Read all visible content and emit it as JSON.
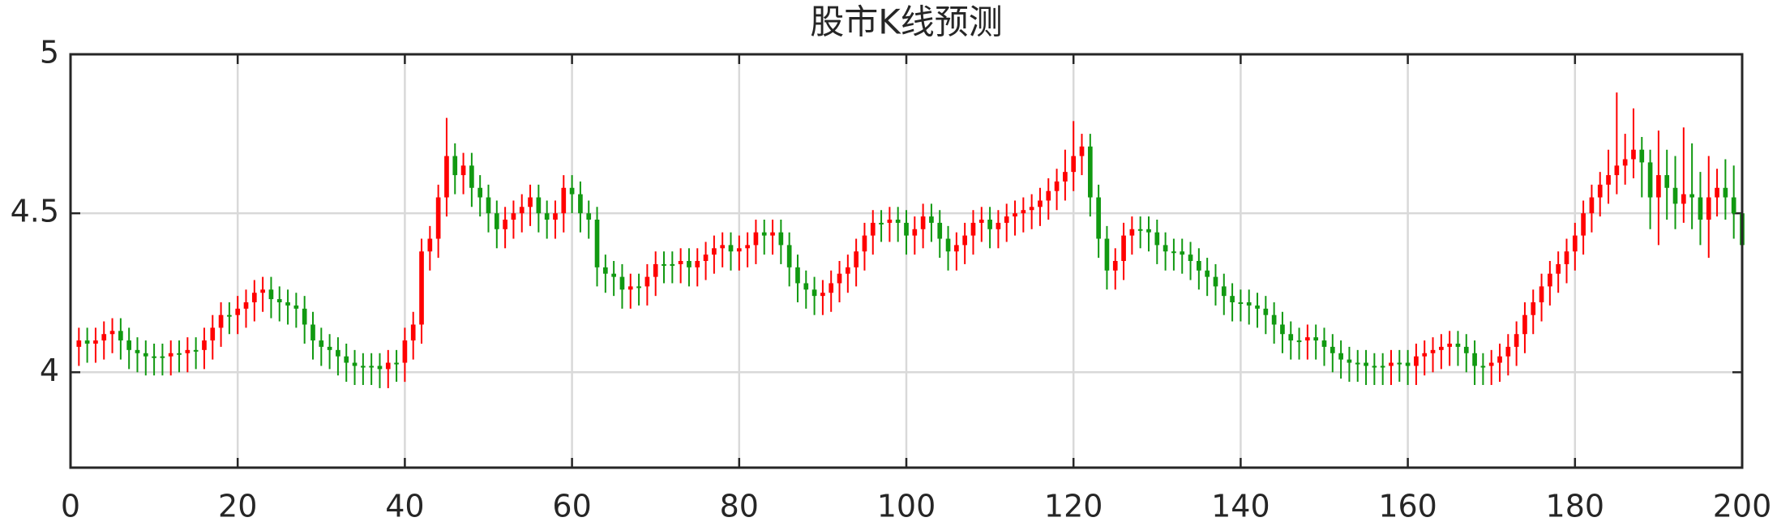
{
  "chart_data": {
    "type": "candlestick",
    "title": "股市K线预测",
    "up_color": "#ff0000",
    "down_color": "#119911",
    "grid": true,
    "xlim": [
      0,
      200
    ],
    "xticks": [
      0,
      20,
      40,
      60,
      80,
      100,
      120,
      140,
      160,
      180,
      200
    ],
    "ylim": [
      3.7,
      5
    ],
    "yticks": [
      4,
      4.5,
      5
    ],
    "x": [
      1,
      2,
      3,
      4,
      5,
      6,
      7,
      8,
      9,
      10,
      11,
      12,
      13,
      14,
      15,
      16,
      17,
      18,
      19,
      20,
      21,
      22,
      23,
      24,
      25,
      26,
      27,
      28,
      29,
      30,
      31,
      32,
      33,
      34,
      35,
      36,
      37,
      38,
      39,
      40,
      41,
      42,
      43,
      44,
      45,
      46,
      47,
      48,
      49,
      50,
      51,
      52,
      53,
      54,
      55,
      56,
      57,
      58,
      59,
      60,
      61,
      62,
      63,
      64,
      65,
      66,
      67,
      68,
      69,
      70,
      71,
      72,
      73,
      74,
      75,
      76,
      77,
      78,
      79,
      80,
      81,
      82,
      83,
      84,
      85,
      86,
      87,
      88,
      89,
      90,
      91,
      92,
      93,
      94,
      95,
      96,
      97,
      98,
      99,
      100,
      101,
      102,
      103,
      104,
      105,
      106,
      107,
      108,
      109,
      110,
      111,
      112,
      113,
      114,
      115,
      116,
      117,
      118,
      119,
      120,
      121,
      122,
      123,
      124,
      125,
      126,
      127,
      128,
      129,
      130,
      131,
      132,
      133,
      134,
      135,
      136,
      137,
      138,
      139,
      140,
      141,
      142,
      143,
      144,
      145,
      146,
      147,
      148,
      149,
      150,
      151,
      152,
      153,
      154,
      155,
      156,
      157,
      158,
      159,
      160,
      161,
      162,
      163,
      164,
      165,
      166,
      167,
      168,
      169,
      170,
      171,
      172,
      173,
      174,
      175,
      176,
      177,
      178,
      179,
      180,
      181,
      182,
      183,
      184,
      185,
      186,
      187,
      188,
      189,
      190,
      191,
      192,
      193,
      194,
      195,
      196,
      197,
      198,
      199,
      200
    ],
    "open": [
      4.08,
      4.1,
      4.09,
      4.1,
      4.12,
      4.13,
      4.1,
      4.07,
      4.06,
      4.05,
      4.05,
      4.05,
      4.06,
      4.06,
      4.07,
      4.07,
      4.1,
      4.14,
      4.18,
      4.18,
      4.2,
      4.22,
      4.25,
      4.26,
      4.23,
      4.22,
      4.21,
      4.2,
      4.15,
      4.1,
      4.08,
      4.07,
      4.05,
      4.03,
      4.02,
      4.02,
      4.02,
      4.01,
      4.03,
      4.03,
      4.1,
      4.15,
      4.38,
      4.42,
      4.55,
      4.68,
      4.62,
      4.65,
      4.58,
      4.55,
      4.5,
      4.45,
      4.48,
      4.5,
      4.52,
      4.55,
      4.5,
      4.48,
      4.5,
      4.58,
      4.56,
      4.5,
      4.48,
      4.33,
      4.31,
      4.3,
      4.26,
      4.27,
      4.27,
      4.3,
      4.34,
      4.34,
      4.34,
      4.35,
      4.33,
      4.35,
      4.37,
      4.39,
      4.4,
      4.38,
      4.39,
      4.4,
      4.44,
      4.43,
      4.44,
      4.4,
      4.33,
      4.28,
      4.26,
      4.24,
      4.25,
      4.28,
      4.31,
      4.33,
      4.38,
      4.43,
      4.47,
      4.47,
      4.48,
      4.47,
      4.43,
      4.45,
      4.49,
      4.47,
      4.42,
      4.38,
      4.4,
      4.43,
      4.47,
      4.48,
      4.45,
      4.47,
      4.49,
      4.5,
      4.51,
      4.52,
      4.54,
      4.57,
      4.6,
      4.63,
      4.68,
      4.71,
      4.55,
      4.42,
      4.32,
      4.35,
      4.43,
      4.45,
      4.45,
      4.44,
      4.4,
      4.38,
      4.38,
      4.37,
      4.35,
      4.32,
      4.3,
      4.27,
      4.24,
      4.22,
      4.22,
      4.21,
      4.2,
      4.18,
      4.15,
      4.12,
      4.1,
      4.1,
      4.11,
      4.1,
      4.08,
      4.06,
      4.04,
      4.03,
      4.03,
      4.02,
      4.02,
      4.02,
      4.03,
      4.03,
      4.02,
      4.05,
      4.06,
      4.07,
      4.08,
      4.09,
      4.08,
      4.06,
      4.02,
      4.02,
      4.03,
      4.05,
      4.08,
      4.12,
      4.18,
      4.22,
      4.27,
      4.31,
      4.34,
      4.38,
      4.43,
      4.5,
      4.55,
      4.59,
      4.62,
      4.65,
      4.67,
      4.7,
      4.66,
      4.55,
      4.62,
      4.58,
      4.53,
      4.56,
      4.55,
      4.48,
      4.55,
      4.58,
      4.55,
      4.5
    ],
    "high": [
      4.14,
      4.14,
      4.14,
      4.16,
      4.17,
      4.17,
      4.14,
      4.11,
      4.1,
      4.09,
      4.09,
      4.1,
      4.1,
      4.11,
      4.11,
      4.14,
      4.18,
      4.22,
      4.22,
      4.24,
      4.26,
      4.29,
      4.3,
      4.3,
      4.27,
      4.26,
      4.25,
      4.24,
      4.19,
      4.14,
      4.12,
      4.11,
      4.09,
      4.07,
      4.06,
      4.06,
      4.06,
      4.07,
      4.07,
      4.14,
      4.19,
      4.42,
      4.46,
      4.59,
      4.8,
      4.72,
      4.69,
      4.69,
      4.62,
      4.59,
      4.54,
      4.52,
      4.54,
      4.56,
      4.59,
      4.59,
      4.54,
      4.54,
      4.62,
      4.62,
      4.6,
      4.54,
      4.52,
      4.37,
      4.35,
      4.34,
      4.31,
      4.31,
      4.34,
      4.38,
      4.38,
      4.38,
      4.39,
      4.39,
      4.39,
      4.41,
      4.43,
      4.44,
      4.44,
      4.43,
      4.44,
      4.48,
      4.48,
      4.48,
      4.48,
      4.44,
      4.37,
      4.32,
      4.3,
      4.29,
      4.32,
      4.35,
      4.37,
      4.42,
      4.47,
      4.51,
      4.51,
      4.52,
      4.52,
      4.51,
      4.49,
      4.53,
      4.53,
      4.51,
      4.46,
      4.44,
      4.47,
      4.51,
      4.52,
      4.52,
      4.51,
      4.53,
      4.54,
      4.55,
      4.56,
      4.58,
      4.61,
      4.64,
      4.7,
      4.79,
      4.75,
      4.75,
      4.59,
      4.46,
      4.39,
      4.47,
      4.49,
      4.49,
      4.49,
      4.48,
      4.44,
      4.42,
      4.42,
      4.41,
      4.39,
      4.36,
      4.34,
      4.31,
      4.28,
      4.26,
      4.26,
      4.25,
      4.24,
      4.22,
      4.19,
      4.16,
      4.14,
      4.15,
      4.15,
      4.14,
      4.12,
      4.1,
      4.08,
      4.07,
      4.07,
      4.06,
      4.06,
      4.07,
      4.07,
      4.07,
      4.09,
      4.1,
      4.11,
      4.12,
      4.13,
      4.13,
      4.12,
      4.1,
      4.06,
      4.07,
      4.09,
      4.12,
      4.16,
      4.22,
      4.26,
      4.31,
      4.35,
      4.38,
      4.42,
      4.47,
      4.54,
      4.59,
      4.63,
      4.7,
      4.88,
      4.75,
      4.83,
      4.74,
      4.7,
      4.76,
      4.7,
      4.68,
      4.77,
      4.72,
      4.63,
      4.68,
      4.64,
      4.67,
      4.65,
      4.56
    ],
    "low": [
      4.02,
      4.03,
      4.03,
      4.04,
      4.06,
      4.04,
      4.01,
      4.0,
      3.99,
      3.99,
      3.99,
      3.99,
      4.0,
      4.0,
      4.01,
      4.01,
      4.04,
      4.08,
      4.12,
      4.12,
      4.14,
      4.16,
      4.19,
      4.17,
      4.16,
      4.15,
      4.14,
      4.09,
      4.04,
      4.02,
      4.01,
      3.99,
      3.97,
      3.96,
      3.96,
      3.96,
      3.95,
      3.95,
      3.97,
      3.97,
      4.04,
      4.09,
      4.32,
      4.36,
      4.49,
      4.56,
      4.56,
      4.52,
      4.49,
      4.44,
      4.39,
      4.39,
      4.42,
      4.44,
      4.46,
      4.44,
      4.42,
      4.42,
      4.44,
      4.5,
      4.44,
      4.42,
      4.27,
      4.25,
      4.24,
      4.2,
      4.2,
      4.21,
      4.21,
      4.24,
      4.28,
      4.28,
      4.28,
      4.27,
      4.27,
      4.29,
      4.31,
      4.33,
      4.32,
      4.32,
      4.33,
      4.34,
      4.37,
      4.37,
      4.34,
      4.27,
      4.22,
      4.2,
      4.18,
      4.18,
      4.19,
      4.22,
      4.25,
      4.27,
      4.32,
      4.37,
      4.41,
      4.41,
      4.41,
      4.37,
      4.37,
      4.39,
      4.41,
      4.36,
      4.32,
      4.32,
      4.34,
      4.37,
      4.41,
      4.39,
      4.39,
      4.41,
      4.43,
      4.44,
      4.45,
      4.46,
      4.48,
      4.51,
      4.54,
      4.57,
      4.62,
      4.49,
      4.36,
      4.26,
      4.26,
      4.29,
      4.37,
      4.39,
      4.38,
      4.34,
      4.32,
      4.32,
      4.31,
      4.29,
      4.26,
      4.24,
      4.21,
      4.18,
      4.16,
      4.16,
      4.15,
      4.14,
      4.12,
      4.09,
      4.06,
      4.04,
      4.04,
      4.04,
      4.04,
      4.02,
      4.0,
      3.98,
      3.97,
      3.97,
      3.96,
      3.96,
      3.96,
      3.96,
      3.97,
      3.96,
      3.96,
      3.99,
      4.0,
      4.01,
      4.02,
      4.02,
      4.0,
      3.96,
      3.96,
      3.96,
      3.97,
      3.99,
      4.02,
      4.06,
      4.12,
      4.16,
      4.21,
      4.25,
      4.28,
      4.32,
      4.37,
      4.44,
      4.49,
      4.53,
      4.56,
      4.59,
      4.61,
      4.55,
      4.45,
      4.4,
      4.48,
      4.45,
      4.47,
      4.45,
      4.4,
      4.36,
      4.49,
      4.48,
      4.42,
      4.32
    ],
    "close": [
      4.1,
      4.09,
      4.1,
      4.12,
      4.13,
      4.1,
      4.07,
      4.06,
      4.05,
      4.05,
      4.05,
      4.06,
      4.06,
      4.07,
      4.07,
      4.1,
      4.14,
      4.18,
      4.18,
      4.2,
      4.22,
      4.25,
      4.26,
      4.23,
      4.22,
      4.21,
      4.2,
      4.15,
      4.1,
      4.08,
      4.07,
      4.05,
      4.03,
      4.02,
      4.02,
      4.02,
      4.01,
      4.03,
      4.03,
      4.1,
      4.15,
      4.38,
      4.42,
      4.55,
      4.68,
      4.62,
      4.65,
      4.58,
      4.55,
      4.5,
      4.45,
      4.48,
      4.5,
      4.52,
      4.55,
      4.5,
      4.48,
      4.5,
      4.58,
      4.56,
      4.5,
      4.48,
      4.33,
      4.31,
      4.3,
      4.26,
      4.27,
      4.27,
      4.3,
      4.34,
      4.34,
      4.34,
      4.35,
      4.33,
      4.35,
      4.37,
      4.39,
      4.4,
      4.38,
      4.39,
      4.4,
      4.44,
      4.43,
      4.44,
      4.4,
      4.33,
      4.28,
      4.26,
      4.24,
      4.25,
      4.28,
      4.31,
      4.33,
      4.38,
      4.43,
      4.47,
      4.47,
      4.48,
      4.47,
      4.43,
      4.45,
      4.49,
      4.47,
      4.42,
      4.38,
      4.4,
      4.43,
      4.47,
      4.48,
      4.45,
      4.47,
      4.49,
      4.5,
      4.51,
      4.52,
      4.54,
      4.57,
      4.6,
      4.63,
      4.68,
      4.71,
      4.55,
      4.42,
      4.32,
      4.35,
      4.43,
      4.45,
      4.45,
      4.44,
      4.4,
      4.38,
      4.38,
      4.37,
      4.35,
      4.32,
      4.3,
      4.27,
      4.24,
      4.22,
      4.22,
      4.21,
      4.2,
      4.18,
      4.15,
      4.12,
      4.1,
      4.1,
      4.11,
      4.1,
      4.08,
      4.06,
      4.04,
      4.03,
      4.03,
      4.02,
      4.02,
      4.02,
      4.03,
      4.03,
      4.02,
      4.05,
      4.06,
      4.07,
      4.08,
      4.09,
      4.08,
      4.06,
      4.02,
      4.02,
      4.03,
      4.05,
      4.08,
      4.12,
      4.18,
      4.22,
      4.27,
      4.31,
      4.34,
      4.38,
      4.43,
      4.5,
      4.55,
      4.59,
      4.62,
      4.65,
      4.67,
      4.7,
      4.66,
      4.55,
      4.62,
      4.58,
      4.53,
      4.56,
      4.55,
      4.48,
      4.55,
      4.58,
      4.55,
      4.5,
      4.4
    ]
  }
}
